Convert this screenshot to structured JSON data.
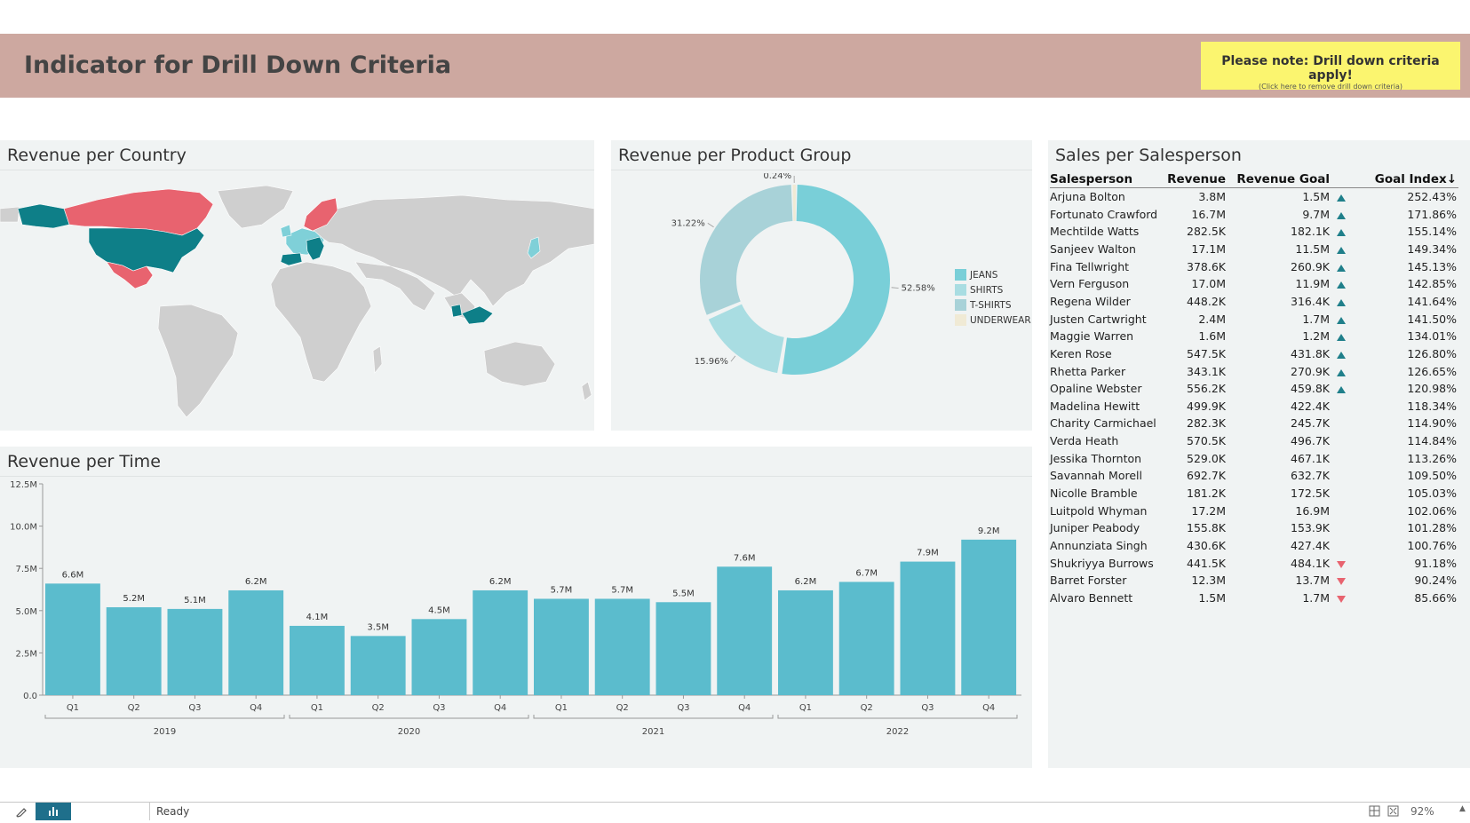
{
  "header": {
    "title": "Indicator for Drill Down Criteria",
    "note_main": "Please note: Drill down criteria apply!",
    "note_sub": "(Click here to remove drill down criteria)"
  },
  "panels": {
    "country_title": "Revenue per Country",
    "product_title": "Revenue per Product Group",
    "time_title": "Revenue per Time",
    "sales_title": "Sales per Salesperson"
  },
  "colors": {
    "teal_dark": "#0e7f88",
    "pink": "#e8636f",
    "light_teal": "#7fd0d8",
    "bar": "#5bbccd",
    "map_gray": "#cfcfcf",
    "header_bg": "#cda8a0",
    "note_bg": "#fbf56f"
  },
  "donut": {
    "slices": [
      {
        "name": "JEANS",
        "value": 52.58,
        "label": "52.58%",
        "color": "#79cfd8"
      },
      {
        "name": "SHIRTS",
        "value": 15.96,
        "label": "15.96%",
        "color": "#a9dde2"
      },
      {
        "name": "T-SHIRTS",
        "value": 31.22,
        "label": "31.22%",
        "color": "#a8d2d8"
      },
      {
        "name": "UNDERWEAR",
        "value": 0.24,
        "label": "0.24%",
        "color": "#f0ead5"
      }
    ]
  },
  "chart_data": {
    "type": "bar",
    "title": "Revenue per Time",
    "categories": [
      "Q1",
      "Q2",
      "Q3",
      "Q4",
      "Q1",
      "Q2",
      "Q3",
      "Q4",
      "Q1",
      "Q2",
      "Q3",
      "Q4",
      "Q1",
      "Q2",
      "Q3",
      "Q4"
    ],
    "groups": [
      "2019",
      "2020",
      "2021",
      "2022"
    ],
    "values": [
      6.6,
      5.2,
      5.1,
      6.2,
      4.1,
      3.5,
      4.5,
      6.2,
      5.7,
      5.7,
      5.5,
      7.6,
      6.2,
      6.7,
      7.9,
      9.2
    ],
    "value_labels": [
      "6.6M",
      "5.2M",
      "5.1M",
      "6.2M",
      "4.1M",
      "3.5M",
      "4.5M",
      "6.2M",
      "5.7M",
      "5.7M",
      "5.5M",
      "7.6M",
      "6.2M",
      "6.7M",
      "7.9M",
      "9.2M"
    ],
    "y_ticks": [
      "0.0",
      "2.5M",
      "5.0M",
      "7.5M",
      "10.0M",
      "12.5M"
    ],
    "ylim": [
      0,
      12.5
    ]
  },
  "sales_table": {
    "headers": {
      "name": "Salesperson",
      "revenue": "Revenue",
      "goal": "Revenue Goal",
      "index": "Goal Index↓"
    },
    "rows": [
      {
        "name": "Arjuna Bolton",
        "revenue": "3.8M",
        "goal": "1.5M",
        "dir": "up",
        "index": "252.43%"
      },
      {
        "name": "Fortunato Crawford",
        "revenue": "16.7M",
        "goal": "9.7M",
        "dir": "up",
        "index": "171.86%"
      },
      {
        "name": "Mechtilde Watts",
        "revenue": "282.5K",
        "goal": "182.1K",
        "dir": "up",
        "index": "155.14%"
      },
      {
        "name": "Sanjeev Walton",
        "revenue": "17.1M",
        "goal": "11.5M",
        "dir": "up",
        "index": "149.34%"
      },
      {
        "name": "Fina Tellwright",
        "revenue": "378.6K",
        "goal": "260.9K",
        "dir": "up",
        "index": "145.13%"
      },
      {
        "name": "Vern Ferguson",
        "revenue": "17.0M",
        "goal": "11.9M",
        "dir": "up",
        "index": "142.85%"
      },
      {
        "name": "Regena Wilder",
        "revenue": "448.2K",
        "goal": "316.4K",
        "dir": "up",
        "index": "141.64%"
      },
      {
        "name": "Justen Cartwright",
        "revenue": "2.4M",
        "goal": "1.7M",
        "dir": "up",
        "index": "141.50%"
      },
      {
        "name": "Maggie Warren",
        "revenue": "1.6M",
        "goal": "1.2M",
        "dir": "up",
        "index": "134.01%"
      },
      {
        "name": "Keren Rose",
        "revenue": "547.5K",
        "goal": "431.8K",
        "dir": "up",
        "index": "126.80%"
      },
      {
        "name": "Rhetta Parker",
        "revenue": "343.1K",
        "goal": "270.9K",
        "dir": "up",
        "index": "126.65%"
      },
      {
        "name": "Opaline Webster",
        "revenue": "556.2K",
        "goal": "459.8K",
        "dir": "up",
        "index": "120.98%"
      },
      {
        "name": "Madelina Hewitt",
        "revenue": "499.9K",
        "goal": "422.4K",
        "dir": "",
        "index": "118.34%"
      },
      {
        "name": "Charity Carmichael",
        "revenue": "282.3K",
        "goal": "245.7K",
        "dir": "",
        "index": "114.90%"
      },
      {
        "name": "Verda Heath",
        "revenue": "570.5K",
        "goal": "496.7K",
        "dir": "",
        "index": "114.84%"
      },
      {
        "name": "Jessika Thornton",
        "revenue": "529.0K",
        "goal": "467.1K",
        "dir": "",
        "index": "113.26%"
      },
      {
        "name": "Savannah Morell",
        "revenue": "692.7K",
        "goal": "632.7K",
        "dir": "",
        "index": "109.50%"
      },
      {
        "name": "Nicolle Bramble",
        "revenue": "181.2K",
        "goal": "172.5K",
        "dir": "",
        "index": "105.03%"
      },
      {
        "name": "Luitpold Whyman",
        "revenue": "17.2M",
        "goal": "16.9M",
        "dir": "",
        "index": "102.06%"
      },
      {
        "name": "Juniper Peabody",
        "revenue": "155.8K",
        "goal": "153.9K",
        "dir": "",
        "index": "101.28%"
      },
      {
        "name": "Annunziata Singh",
        "revenue": "430.6K",
        "goal": "427.4K",
        "dir": "",
        "index": "100.76%"
      },
      {
        "name": "Shukriyya Burrows",
        "revenue": "441.5K",
        "goal": "484.1K",
        "dir": "down",
        "index": "91.18%"
      },
      {
        "name": "Barret Forster",
        "revenue": "12.3M",
        "goal": "13.7M",
        "dir": "down",
        "index": "90.24%"
      },
      {
        "name": "Alvaro Bennett",
        "revenue": "1.5M",
        "goal": "1.7M",
        "dir": "down",
        "index": "85.66%"
      }
    ]
  },
  "statusbar": {
    "status": "Ready",
    "zoom": "92%"
  }
}
